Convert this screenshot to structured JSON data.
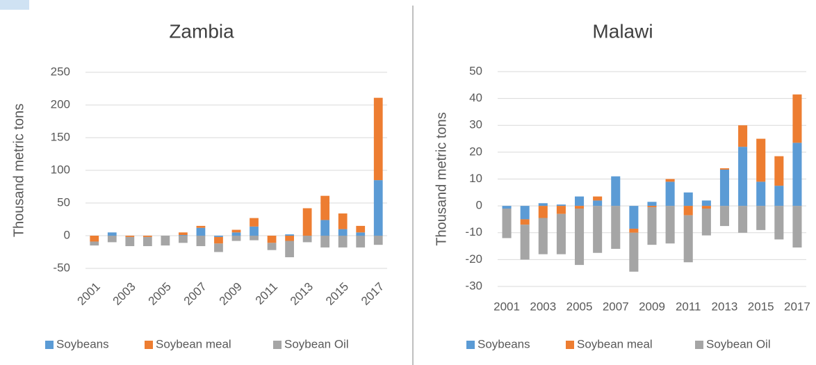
{
  "chart_data": [
    {
      "type": "bar",
      "stacked": true,
      "title": "Zambia",
      "y_label": "Thousand metric  tons",
      "categories": [
        "2001",
        null,
        "2003",
        null,
        "2005",
        null,
        "2007",
        null,
        "2009",
        null,
        "2011",
        null,
        "2013",
        null,
        "2015",
        null,
        "2017"
      ],
      "ylim": [
        -50,
        250
      ],
      "yticks": [
        -50,
        0,
        50,
        100,
        150,
        200,
        250
      ],
      "grid": true,
      "x_label_rotation": -45,
      "legend": "bottom",
      "series": [
        {
          "name": "Soybeans",
          "color": "#5b9bd5",
          "values": [
            0,
            5,
            0,
            0,
            0,
            1,
            12,
            -2,
            5,
            14,
            0,
            2,
            0,
            24,
            10,
            5,
            85
          ]
        },
        {
          "name": "Soybean meal",
          "color": "#ed7d31",
          "values": [
            -9,
            0,
            -2,
            -2,
            0,
            4,
            3,
            -10,
            4,
            13,
            -11,
            -8,
            42,
            37,
            24,
            10,
            126
          ]
        },
        {
          "name": "Soybean Oil",
          "color": "#a5a5a5",
          "values": [
            -6,
            -10,
            -14,
            -14,
            -15,
            -11,
            -16,
            -13,
            -8,
            -7,
            -11,
            -25,
            -10,
            -18,
            -18,
            -18,
            -14
          ]
        }
      ]
    },
    {
      "type": "bar",
      "stacked": true,
      "title": "Malawi",
      "y_label": "Thousand metric  tons",
      "categories": [
        "2001",
        null,
        "2003",
        null,
        "2005",
        null,
        "2007",
        null,
        "2009",
        null,
        "2011",
        null,
        "2013",
        null,
        "2015",
        null,
        "2017"
      ],
      "ylim": [
        -30,
        50
      ],
      "yticks": [
        -30,
        -20,
        -10,
        0,
        10,
        20,
        30,
        40,
        50
      ],
      "grid": true,
      "x_label_rotation": 0,
      "legend": "bottom",
      "series": [
        {
          "name": "Soybeans",
          "color": "#5b9bd5",
          "values": [
            -1,
            -5,
            1,
            0.5,
            3.5,
            2,
            11,
            -8.5,
            1.5,
            9,
            5,
            2,
            13.5,
            22,
            9,
            7.5,
            23.5
          ]
        },
        {
          "name": "Soybean meal",
          "color": "#ed7d31",
          "values": [
            0,
            -2,
            -4.5,
            -3,
            -1,
            1.5,
            0,
            -1.5,
            -0.5,
            1,
            -3.5,
            -1,
            0.5,
            8,
            16,
            11,
            18
          ]
        },
        {
          "name": "Soybean Oil",
          "color": "#a5a5a5",
          "values": [
            -11,
            -13,
            -13.5,
            -15,
            -21,
            -17.5,
            -16,
            -14.5,
            -14,
            -14,
            -17.5,
            -10,
            -7.5,
            -10,
            -9,
            -12.5,
            -15.5
          ]
        }
      ]
    }
  ]
}
